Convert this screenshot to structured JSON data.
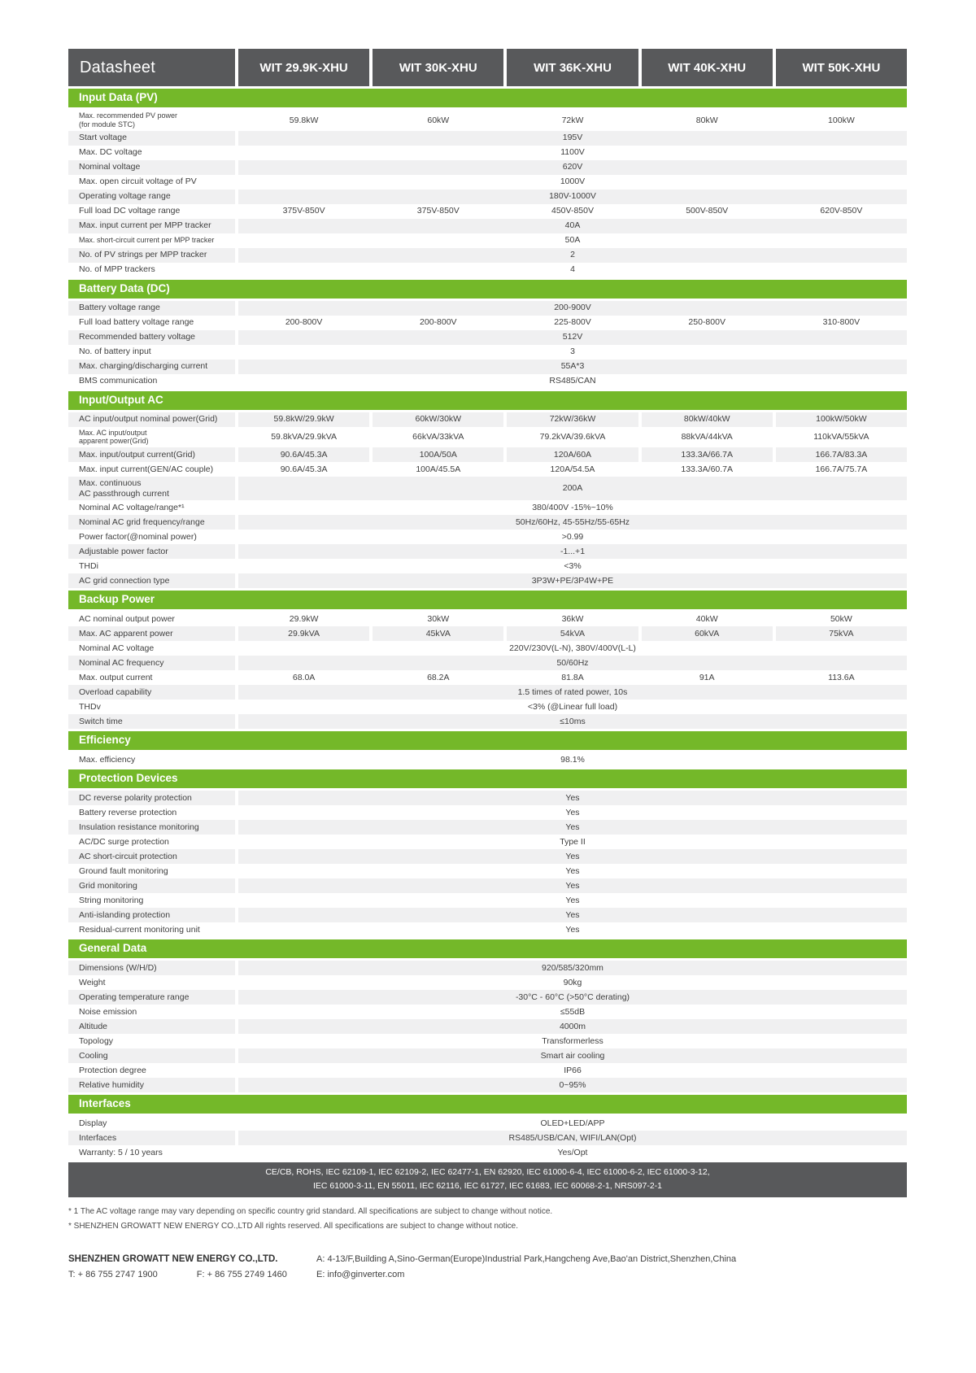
{
  "header": {
    "title": "Datasheet",
    "models": [
      "WIT 29.9K-XHU",
      "WIT 30K-XHU",
      "WIT 36K-XHU",
      "WIT 40K-XHU",
      "WIT 50K-XHU"
    ]
  },
  "sections": [
    {
      "title": "Input Data (PV)",
      "rows": [
        {
          "label": "Max. recommended PV power\n(for module STC)",
          "values": [
            "59.8kW",
            "60kW",
            "72kW",
            "80kW",
            "100kW"
          ]
        },
        {
          "label": "Start voltage",
          "value": "195V"
        },
        {
          "label": "Max. DC voltage",
          "value": "1100V"
        },
        {
          "label": "Nominal voltage",
          "value": "620V"
        },
        {
          "label": "Max. open circuit voltage of PV",
          "value": "1000V"
        },
        {
          "label": "Operating voltage range",
          "value": "180V-1000V"
        },
        {
          "label": "Full load DC voltage range",
          "values": [
            "375V-850V",
            "375V-850V",
            "450V-850V",
            "500V-850V",
            "620V-850V"
          ]
        },
        {
          "label": "Max. input current per MPP tracker",
          "value": "40A"
        },
        {
          "label": "Max. short-circuit current per MPP tracker",
          "value": "50A"
        },
        {
          "label": "No. of PV strings per MPP tracker",
          "value": "2"
        },
        {
          "label": "No. of MPP trackers",
          "value": "4"
        }
      ]
    },
    {
      "title": "Battery Data (DC)",
      "rows": [
        {
          "label": "Battery voltage range",
          "value": "200-900V"
        },
        {
          "label": "Full load battery voltage range",
          "values": [
            "200-800V",
            "200-800V",
            "225-800V",
            "250-800V",
            "310-800V"
          ]
        },
        {
          "label": "Recommended battery voltage",
          "value": "512V"
        },
        {
          "label": "No. of battery input",
          "value": "3"
        },
        {
          "label": "Max. charging/discharging current",
          "value": "55A*3"
        },
        {
          "label": "BMS communication",
          "value": "RS485/CAN"
        }
      ]
    },
    {
      "title": "Input/Output AC",
      "rows": [
        {
          "label": "AC input/output nominal power(Grid)",
          "values": [
            "59.8kW/29.9kW",
            "60kW/30kW",
            "72kW/36kW",
            "80kW/40kW",
            "100kW/50kW"
          ]
        },
        {
          "label": "Max. AC input/output\napparent power(Grid)",
          "values": [
            "59.8kVA/29.9kVA",
            "66kVA/33kVA",
            "79.2kVA/39.6kVA",
            "88kVA/44kVA",
            "110kVA/55kVA"
          ]
        },
        {
          "label": "Max. input/output current(Grid)",
          "values": [
            "90.6A/45.3A",
            "100A/50A",
            "120A/60A",
            "133.3A/66.7A",
            "166.7A/83.3A"
          ]
        },
        {
          "label": "Max. input current(GEN/AC couple)",
          "values": [
            "90.6A/45.3A",
            "100A/45.5A",
            "120A/54.5A",
            "133.3A/60.7A",
            "166.7A/75.7A"
          ]
        },
        {
          "label": "Max. continuous\nAC passthrough current",
          "value": "200A"
        },
        {
          "label": "Nominal AC voltage/range*¹",
          "value": "380/400V  -15%~10%"
        },
        {
          "label": "Nominal AC grid frequency/range",
          "value": "50Hz/60Hz, 45-55Hz/55-65Hz"
        },
        {
          "label": "Power factor(@nominal power)",
          "value": ">0.99"
        },
        {
          "label": "Adjustable power factor",
          "value": "-1...+1"
        },
        {
          "label": "THDi",
          "value": "<3%"
        },
        {
          "label": "AC grid connection type",
          "value": "3P3W+PE/3P4W+PE"
        }
      ]
    },
    {
      "title": "Backup Power",
      "rows": [
        {
          "label": "AC nominal output power",
          "values": [
            "29.9kW",
            "30kW",
            "36kW",
            "40kW",
            "50kW"
          ]
        },
        {
          "label": "Max. AC apparent power",
          "values": [
            "29.9kVA",
            "45kVA",
            "54kVA",
            "60kVA",
            "75kVA"
          ]
        },
        {
          "label": "Nominal AC voltage",
          "value": "220V/230V(L-N), 380V/400V(L-L)"
        },
        {
          "label": "Nominal AC frequency",
          "value": "50/60Hz"
        },
        {
          "label": "Max. output current",
          "values": [
            "68.0A",
            "68.2A",
            "81.8A",
            "91A",
            "113.6A"
          ]
        },
        {
          "label": "Overload capability",
          "value": "1.5 times of rated power, 10s"
        },
        {
          "label": "THDv",
          "value": "<3% (@Linear full load)"
        },
        {
          "label": "Switch time",
          "value": "≤10ms"
        }
      ]
    },
    {
      "title": "Efficiency",
      "rows": [
        {
          "label": "Max. efficiency",
          "value": "98.1%"
        }
      ]
    },
    {
      "title": "Protection Devices",
      "rows": [
        {
          "label": "DC reverse polarity protection",
          "value": "Yes"
        },
        {
          "label": "Battery reverse protection",
          "value": "Yes"
        },
        {
          "label": "Insulation resistance monitoring",
          "value": "Yes"
        },
        {
          "label": "AC/DC surge protection",
          "value": "Type II"
        },
        {
          "label": "AC short-circuit protection",
          "value": "Yes"
        },
        {
          "label": "Ground fault monitoring",
          "value": "Yes"
        },
        {
          "label": "Grid monitoring",
          "value": "Yes"
        },
        {
          "label": "String monitoring",
          "value": "Yes"
        },
        {
          "label": "Anti-islanding protection",
          "value": "Yes"
        },
        {
          "label": "Residual-current monitoring unit",
          "value": "Yes"
        }
      ]
    },
    {
      "title": "General Data",
      "rows": [
        {
          "label": "Dimensions (W/H/D)",
          "value": "920/585/320mm"
        },
        {
          "label": "Weight",
          "value": "90kg"
        },
        {
          "label": "Operating temperature range",
          "value": "-30°C - 60°C (>50°C derating)"
        },
        {
          "label": "Noise emission",
          "value": "≤55dB"
        },
        {
          "label": "Altitude",
          "value": "4000m"
        },
        {
          "label": "Topology",
          "value": "Transformerless"
        },
        {
          "label": "Cooling",
          "value": "Smart air cooling"
        },
        {
          "label": "Protection degree",
          "value": "IP66"
        },
        {
          "label": "Relative humidity",
          "value": "0~95%"
        }
      ]
    },
    {
      "title": "Interfaces",
      "rows": [
        {
          "label": "Display",
          "value": "OLED+LED/APP"
        },
        {
          "label": "Interfaces",
          "value": "RS485/USB/CAN, WIFI/LAN(Opt)"
        },
        {
          "label": "Warranty: 5 / 10 years",
          "value": "Yes/Opt"
        }
      ]
    }
  ],
  "certifications": {
    "line1": "CE/CB, ROHS, IEC 62109-1, IEC 62109-2, IEC 62477-1, EN 62920, IEC 61000-6-4, IEC 61000-6-2, IEC 61000-3-12,",
    "line2": "IEC 61000-3-11, EN 55011, IEC 62116, IEC 61727, IEC 61683, IEC 60068-2-1, NRS097-2-1"
  },
  "footnotes": [
    "* 1 The AC voltage range may vary depending on specific country grid standard. All specifications are subject to change without notice.",
    "* SHENZHEN GROWATT NEW ENERGY CO.,LTD All rights reserved. All specifications are subject to change without notice."
  ],
  "footer": {
    "company": "SHENZHEN GROWATT NEW ENERGY CO.,LTD.",
    "tel": "T:  + 86 755 2747 1900",
    "fax": "F:  + 86 755 2749 1460",
    "address": "A: 4-13/F,Building A,Sino-German(Europe)Industrial Park,Hangcheng Ave,Bao'an District,Shenzhen,China",
    "email": "E:  info@ginverter.com"
  },
  "colors": {
    "green": "#74b829",
    "dark": "#58595b",
    "stripe": "#f0f0f1",
    "text": "#3f3f3f"
  }
}
